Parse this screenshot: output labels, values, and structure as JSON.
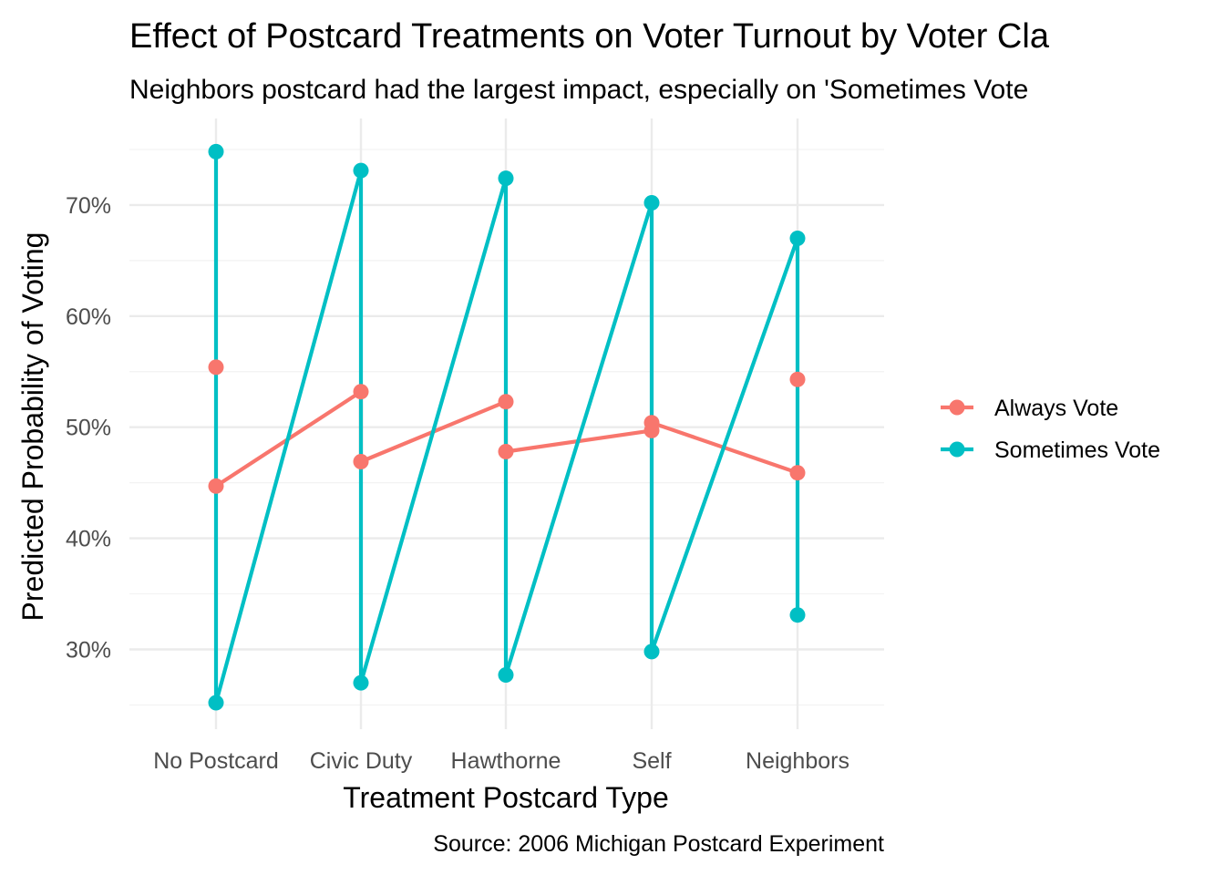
{
  "chart_data": {
    "type": "line",
    "title": "Effect of Postcard Treatments on Voter Turnout by Voter Cla",
    "subtitle": "Neighbors postcard had the largest impact, especially on 'Sometimes Vote",
    "xlabel": "Treatment Postcard Type",
    "ylabel": "Predicted Probability of Voting",
    "caption": "Source: 2006 Michigan Postcard Experiment",
    "categories": [
      "No Postcard",
      "Civic Duty",
      "Hawthorne",
      "Self",
      "Neighbors"
    ],
    "y_ticks": [
      0.3,
      0.4,
      0.5,
      0.6,
      0.7
    ],
    "y_tick_labels": [
      "30%",
      "40%",
      "50%",
      "60%",
      "70%"
    ],
    "ylim": [
      0.23,
      0.76
    ],
    "grid": true,
    "legend_position": "right",
    "series": [
      {
        "name": "Always Vote",
        "color": "#F8766D",
        "points": [
          {
            "x": "No Postcard",
            "y": 0.554
          },
          {
            "x": "No Postcard",
            "y": 0.447
          },
          {
            "x": "Civic Duty",
            "y": 0.532
          },
          {
            "x": "Civic Duty",
            "y": 0.469
          },
          {
            "x": "Hawthorne",
            "y": 0.523
          },
          {
            "x": "Hawthorne",
            "y": 0.478
          },
          {
            "x": "Self",
            "y": 0.504
          },
          {
            "x": "Self",
            "y": 0.497
          },
          {
            "x": "Neighbors",
            "y": 0.543
          },
          {
            "x": "Neighbors",
            "y": 0.459
          }
        ],
        "path": [
          {
            "x": "No Postcard",
            "y": 0.447
          },
          {
            "x": "Civic Duty",
            "y": 0.532
          },
          {
            "x": "Civic Duty",
            "y": 0.469
          },
          {
            "x": "Hawthorne",
            "y": 0.523
          },
          {
            "x": "Hawthorne",
            "y": 0.478
          },
          {
            "x": "Self",
            "y": 0.497
          },
          {
            "x": "Self",
            "y": 0.504
          },
          {
            "x": "Neighbors",
            "y": 0.459
          }
        ]
      },
      {
        "name": "Sometimes Vote",
        "color": "#00BFC4",
        "points": [
          {
            "x": "No Postcard",
            "y": 0.748
          },
          {
            "x": "No Postcard",
            "y": 0.252
          },
          {
            "x": "Civic Duty",
            "y": 0.731
          },
          {
            "x": "Civic Duty",
            "y": 0.27
          },
          {
            "x": "Hawthorne",
            "y": 0.724
          },
          {
            "x": "Hawthorne",
            "y": 0.277
          },
          {
            "x": "Self",
            "y": 0.702
          },
          {
            "x": "Self",
            "y": 0.298
          },
          {
            "x": "Neighbors",
            "y": 0.67
          },
          {
            "x": "Neighbors",
            "y": 0.331
          }
        ],
        "path": [
          {
            "x": "No Postcard",
            "y": 0.748
          },
          {
            "x": "No Postcard",
            "y": 0.252
          },
          {
            "x": "Civic Duty",
            "y": 0.731
          },
          {
            "x": "Civic Duty",
            "y": 0.27
          },
          {
            "x": "Hawthorne",
            "y": 0.724
          },
          {
            "x": "Hawthorne",
            "y": 0.277
          },
          {
            "x": "Self",
            "y": 0.702
          },
          {
            "x": "Self",
            "y": 0.298
          },
          {
            "x": "Neighbors",
            "y": 0.67
          },
          {
            "x": "Neighbors",
            "y": 0.331
          }
        ]
      }
    ]
  }
}
